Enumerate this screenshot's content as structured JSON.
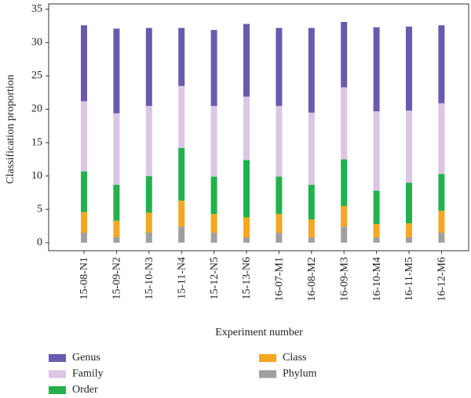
{
  "chart_data": {
    "type": "bar",
    "stacked": true,
    "x_label": "Experiment number",
    "y_label": "Classification proportion",
    "categories": [
      "15-08-N1",
      "15-09-N2",
      "15-10-N3",
      "15-11-N4",
      "15-12-N5",
      "15-13-N6",
      "16-07-M1",
      "16-08-M2",
      "16-09-M3",
      "16-10-M4",
      "16-11-M5",
      "16-12-M6"
    ],
    "series": [
      {
        "name": "Genus",
        "color": "#6a5aad",
        "values": [
          11.4,
          12.7,
          11.7,
          8.7,
          11.4,
          10.9,
          11.7,
          12.7,
          9.8,
          12.6,
          12.6,
          11.7
        ]
      },
      {
        "name": "Family",
        "color": "#dcc6e4",
        "values": [
          10.5,
          10.7,
          10.5,
          9.3,
          10.6,
          9.5,
          10.6,
          10.8,
          10.8,
          11.9,
          10.8,
          10.6
        ]
      },
      {
        "name": "Order",
        "color": "#22b14c",
        "values": [
          6.1,
          5.4,
          5.5,
          7.9,
          5.6,
          8.6,
          5.6,
          5.2,
          7.0,
          5.0,
          6.1,
          5.5
        ]
      },
      {
        "name": "Class",
        "color": "#f5a623",
        "values": [
          3.1,
          2.5,
          3.0,
          3.9,
          2.8,
          3.0,
          2.8,
          2.7,
          3.1,
          2.0,
          2.1,
          3.3
        ]
      },
      {
        "name": "Phylum",
        "color": "#a0a0a0",
        "values": [
          1.5,
          0.8,
          1.5,
          2.4,
          1.5,
          0.8,
          1.5,
          0.8,
          2.4,
          0.8,
          0.8,
          1.5
        ]
      }
    ],
    "ylim": [
      -1.2,
      35.8
    ],
    "yticks": [
      0,
      5,
      10,
      15,
      20,
      25,
      30,
      35
    ]
  }
}
